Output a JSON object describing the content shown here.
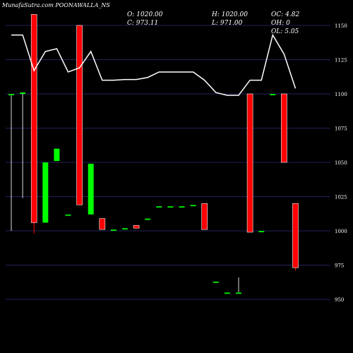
{
  "header": {
    "title": "MunafaSutra.com POONAWALLA_NS",
    "open": "O: 1020.00",
    "close": "C: 973.11",
    "high": "H: 1020.00",
    "low": "L: 971.00",
    "oc": "OC: 4.82",
    "oh": "OH: 0",
    "ol": "OL: 5.05"
  },
  "colors": {
    "background": "#000000",
    "up": "#00ff00",
    "down": "#ff0000",
    "neutral": "#00dd00",
    "line": "#ffffff",
    "grid": "#22225a"
  },
  "chart_data": {
    "type": "candlestick",
    "ylim": [
      944,
      1158
    ],
    "yticks": [
      1150,
      1125,
      1100,
      1075,
      1050,
      1025,
      1000,
      975,
      950
    ],
    "grid": true,
    "candles": [
      {
        "open": 1100,
        "close": 1100,
        "high": 1100,
        "low": 1000
      },
      {
        "open": 1100,
        "close": 1101,
        "high": 1101,
        "low": 1024
      },
      {
        "open": 1158,
        "close": 1006,
        "high": 1158,
        "low": 998
      },
      {
        "open": 1006,
        "close": 1050,
        "high": 1050,
        "low": 1006
      },
      {
        "open": 1051,
        "close": 1060,
        "high": 1060,
        "low": 1051
      },
      {
        "open": 1012,
        "close": 1012,
        "high": 1012,
        "low": 1012
      },
      {
        "open": 1150,
        "close": 1019,
        "high": 1150,
        "low": 1019
      },
      {
        "open": 1012,
        "close": 1049,
        "high": 1049,
        "low": 1012
      },
      {
        "open": 1009,
        "close": 1001,
        "high": 1009,
        "low": 1001
      },
      {
        "open": 1001,
        "close": 1001,
        "high": 1001,
        "low": 1001
      },
      {
        "open": 1002,
        "close": 1002,
        "high": 1002,
        "low": 1002
      },
      {
        "open": 1004,
        "close": 1002,
        "high": 1004,
        "low": 1002
      },
      {
        "open": 1009,
        "close": 1009,
        "high": 1009,
        "low": 1009
      },
      {
        "open": 1018,
        "close": 1018,
        "high": 1018,
        "low": 1018
      },
      {
        "open": 1018,
        "close": 1018,
        "high": 1018,
        "low": 1018
      },
      {
        "open": 1018,
        "close": 1018,
        "high": 1018,
        "low": 1018
      },
      {
        "open": 1019,
        "close": 1019,
        "high": 1019,
        "low": 1019
      },
      {
        "open": 1020,
        "close": 1001,
        "high": 1020,
        "low": 1001
      },
      {
        "open": 963,
        "close": 963,
        "high": 963,
        "low": 963
      },
      {
        "open": 955,
        "close": 955,
        "high": 955,
        "low": 955
      },
      {
        "open": 955,
        "close": 955,
        "high": 966,
        "low": 955
      },
      {
        "open": 1100,
        "close": 999,
        "high": 1100,
        "low": 999
      },
      {
        "open": 1000,
        "close": 1000,
        "high": 1000,
        "low": 1000
      },
      {
        "open": 1100,
        "close": 1100,
        "high": 1100,
        "low": 1100
      },
      {
        "open": 1100,
        "close": 1050,
        "high": 1100,
        "low": 1050
      },
      {
        "open": 1020,
        "close": 973.11,
        "high": 1020,
        "low": 971
      }
    ],
    "line": [
      1143,
      1143,
      1117,
      1131,
      1133,
      1116,
      1119,
      1131,
      1110,
      1110,
      1110.5,
      1110.5,
      1112,
      1116,
      1116,
      1116,
      1116,
      1110,
      1101,
      1099,
      1099,
      1110,
      1110,
      1143,
      1129,
      1104
    ]
  }
}
